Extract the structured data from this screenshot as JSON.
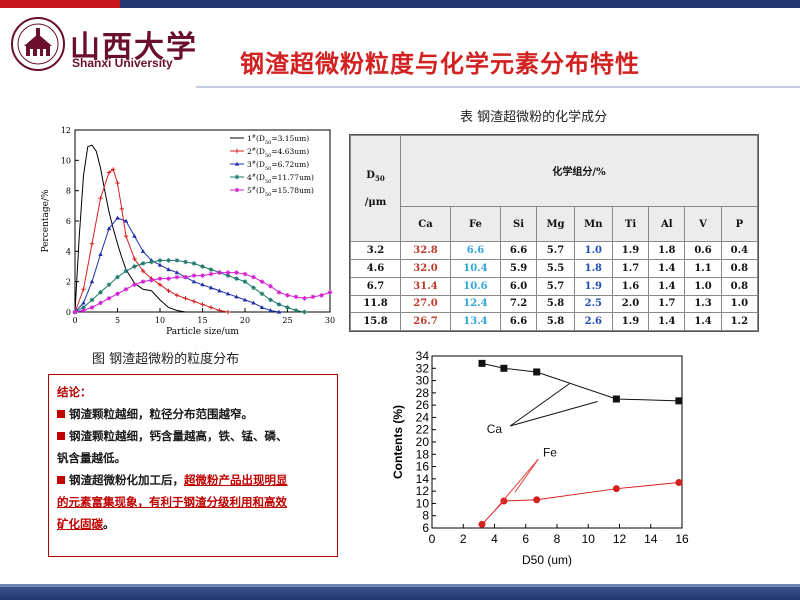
{
  "slide": {
    "title": "钢渣超微粉粒度与化学元素分布特性",
    "logo": {
      "cn": "山西大学",
      "en": "Shanxi University"
    },
    "colors": {
      "title": "#d22121",
      "band": "#22356e",
      "accent": "#c4161c",
      "logo": "#6b0f2e"
    }
  },
  "table": {
    "caption": "表 钢渣超微粉的化学成分",
    "d50_label_main": "D",
    "d50_label_sub": "50",
    "d50_unit": "/μm",
    "group_header": "化学组分/%",
    "columns": [
      "Ca",
      "Fe",
      "Si",
      "Mg",
      "Mn",
      "Ti",
      "Al",
      "V",
      "P"
    ],
    "rows": [
      {
        "d50": "3.2",
        "values": [
          "32.8",
          "6.6",
          "6.6",
          "5.7",
          "1.0",
          "1.9",
          "1.8",
          "0.6",
          "0.4"
        ]
      },
      {
        "d50": "4.6",
        "values": [
          "32.0",
          "10.4",
          "5.9",
          "5.5",
          "1.8",
          "1.7",
          "1.4",
          "1.1",
          "0.8"
        ]
      },
      {
        "d50": "6.7",
        "values": [
          "31.4",
          "10.6",
          "6.0",
          "5.7",
          "1.9",
          "1.6",
          "1.4",
          "1.0",
          "0.8"
        ]
      },
      {
        "d50": "11.8",
        "values": [
          "27.0",
          "12.4",
          "7.2",
          "5.8",
          "2.5",
          "2.0",
          "1.7",
          "1.3",
          "1.0"
        ]
      },
      {
        "d50": "15.8",
        "values": [
          "26.7",
          "13.4",
          "6.6",
          "5.8",
          "2.6",
          "1.9",
          "1.4",
          "1.4",
          "1.2"
        ]
      }
    ]
  },
  "conclusion": {
    "head": "结论：",
    "line1": "钢渣颗粒越细，粒径分布范围越窄。",
    "line2a": "钢渣颗粒越细，钙含量越高，铁、锰、磷、",
    "line2b": "钒含量越低。",
    "line3a_plain": "钢渣超微粉化加工后，",
    "line3a_u": "超微粉产品出现明显",
    "line3b_u": "的元素富集现象，有利于钢渣分级利用和高效",
    "line3c_u": "矿化固碳",
    "line3c_end": "。"
  },
  "chart_data": [
    {
      "type": "line",
      "caption": "图 钢渣超微粉的粒度分布",
      "xlabel": "Particle size/um",
      "ylabel": "Percentage/%",
      "xlim": [
        0,
        30
      ],
      "ylim": [
        0,
        12
      ],
      "xticks": [
        "0",
        "5",
        "10",
        "15",
        "20",
        "25",
        "30"
      ],
      "yticks": [
        "0",
        "2",
        "4",
        "6",
        "8",
        "10",
        "12"
      ],
      "grid": false,
      "legend_position": "top-right",
      "series": [
        {
          "name": "1#(D50=3.15um)",
          "legend_main": "1",
          "legend_rest": "(D",
          "legend_sub": "50",
          "legend_val": "=3.15um)",
          "color": "#000000",
          "marker": "none",
          "x": [
            0,
            0.5,
            1,
            1.5,
            2,
            2.5,
            3,
            3.5,
            4,
            4.5,
            5,
            5.5,
            6,
            7,
            8,
            9,
            10,
            11,
            12,
            13
          ],
          "y": [
            0,
            5.0,
            9.0,
            10.9,
            11.0,
            10.6,
            9.5,
            8.0,
            6.6,
            5.5,
            4.5,
            3.6,
            2.8,
            1.9,
            1.5,
            1.4,
            0.8,
            0.3,
            0.1,
            0
          ]
        },
        {
          "name": "2#(D50=4.63um)",
          "legend_main": "2",
          "legend_rest": "(D",
          "legend_sub": "50",
          "legend_val": "=4.63um)",
          "color": "#d62020",
          "marker": "plus",
          "x": [
            0,
            1,
            2,
            3,
            4,
            4.5,
            5,
            5.5,
            6,
            7,
            8,
            9,
            10,
            11,
            12,
            13,
            14,
            15,
            16,
            17,
            18
          ],
          "y": [
            0,
            1.5,
            4.5,
            7.5,
            9.2,
            9.4,
            8.5,
            6.8,
            5.0,
            3.5,
            2.7,
            2.2,
            1.8,
            1.4,
            1.1,
            0.9,
            0.7,
            0.5,
            0.3,
            0.1,
            0
          ]
        },
        {
          "name": "3#(D50=6.72um)",
          "legend_main": "3",
          "legend_rest": "(D",
          "legend_sub": "50",
          "legend_val": "=6.72um)",
          "color": "#1f2fa8",
          "marker": "triangle",
          "x": [
            0,
            1,
            2,
            3,
            4,
            5,
            6,
            7,
            8,
            9,
            10,
            11,
            12,
            13,
            14,
            15,
            16,
            17,
            18,
            19,
            20,
            21,
            22,
            23,
            24
          ],
          "y": [
            0,
            0.6,
            2.0,
            3.8,
            5.5,
            6.2,
            6.0,
            5.0,
            4.0,
            3.4,
            3.1,
            2.8,
            2.6,
            2.3,
            2.0,
            1.8,
            1.6,
            1.4,
            1.2,
            1.0,
            0.8,
            0.6,
            0.3,
            0.1,
            0
          ]
        },
        {
          "name": "4#(D50=11.77um)",
          "legend_main": "4",
          "legend_rest": "(D",
          "legend_sub": "50",
          "legend_val": "=11.77um)",
          "color": "#1e7a6a",
          "marker": "star",
          "x": [
            0,
            1,
            2,
            3,
            4,
            5,
            6,
            7,
            8,
            9,
            10,
            11,
            12,
            13,
            14,
            15,
            16,
            17,
            18,
            19,
            20,
            21,
            22,
            23,
            24,
            25,
            26,
            27
          ],
          "y": [
            0,
            0.3,
            0.8,
            1.3,
            1.8,
            2.3,
            2.7,
            3.0,
            3.2,
            3.3,
            3.4,
            3.4,
            3.4,
            3.3,
            3.2,
            3.0,
            2.8,
            2.6,
            2.4,
            2.2,
            2.0,
            1.6,
            1.2,
            0.8,
            0.5,
            0.3,
            0.1,
            0
          ]
        },
        {
          "name": "5#(D50=15.78um)",
          "legend_main": "5",
          "legend_rest": "(D",
          "legend_sub": "50",
          "legend_val": "=15.78um)",
          "color": "#d21fd2",
          "marker": "star",
          "x": [
            0,
            1,
            2,
            3,
            4,
            5,
            6,
            7,
            8,
            9,
            10,
            11,
            12,
            13,
            14,
            15,
            16,
            17,
            18,
            19,
            20,
            21,
            22,
            23,
            24,
            25,
            26,
            27,
            28,
            29,
            30
          ],
          "y": [
            0,
            0.1,
            0.3,
            0.6,
            0.9,
            1.2,
            1.5,
            1.8,
            2.0,
            2.1,
            2.2,
            2.2,
            2.3,
            2.3,
            2.4,
            2.4,
            2.5,
            2.6,
            2.6,
            2.6,
            2.5,
            2.3,
            2.0,
            1.7,
            1.3,
            1.1,
            1.0,
            0.9,
            1.0,
            1.1,
            1.3
          ]
        }
      ]
    },
    {
      "type": "scatter",
      "xlabel": "D50 (um)",
      "ylabel": "Contents (%)",
      "xlim": [
        0,
        16
      ],
      "ylim": [
        6,
        34
      ],
      "xticks": [
        "0",
        "2",
        "4",
        "6",
        "8",
        "10",
        "12",
        "14",
        "16"
      ],
      "yticks": [
        "6",
        "8",
        "10",
        "12",
        "14",
        "16",
        "18",
        "20",
        "22",
        "24",
        "26",
        "28",
        "30",
        "32",
        "34"
      ],
      "grid": false,
      "series": [
        {
          "name": "Ca",
          "color": "#111111",
          "marker": "square",
          "x": [
            3.2,
            4.6,
            6.7,
            11.8,
            15.8
          ],
          "y": [
            32.8,
            32.0,
            31.4,
            27.0,
            26.7
          ]
        },
        {
          "name": "Fe",
          "color": "#d62020",
          "marker": "circle",
          "x": [
            3.2,
            4.6,
            6.7,
            11.8,
            15.8
          ],
          "y": [
            6.6,
            10.4,
            10.6,
            12.4,
            13.4
          ]
        }
      ],
      "annotations": [
        {
          "text": "Ca",
          "color": "#111111"
        },
        {
          "text": "Fe",
          "color": "#111111"
        }
      ]
    }
  ]
}
